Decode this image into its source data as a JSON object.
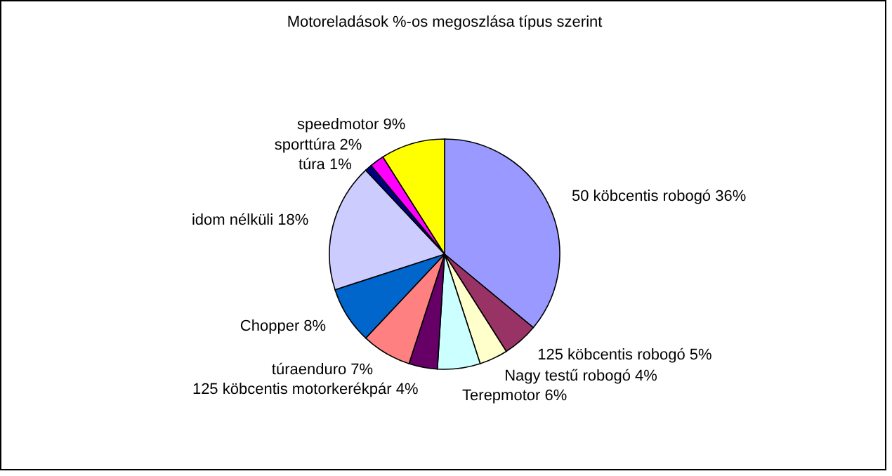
{
  "chart_data": {
    "type": "pie",
    "title": "Motoreladások %-os megoszlása típus szerint",
    "categories": [
      "50 köbcentis robogó",
      "125 köbcentis robogó",
      "Nagy testű robogó",
      "Terepmotor",
      "125 köbcentis motorkerékpár",
      "túraenduro",
      "Chopper",
      "idom nélküli",
      "túra",
      "sporttúra",
      "speedmotor"
    ],
    "values": [
      36,
      5,
      4,
      6,
      4,
      7,
      8,
      18,
      1,
      2,
      9
    ],
    "value_labels": [
      "36%",
      "5%",
      "4%",
      "6%",
      "4%",
      "7%",
      "8%",
      "18%",
      "1%",
      "2%",
      "9%"
    ],
    "colors": [
      "#9999ff",
      "#993366",
      "#ffffcc",
      "#ccffff",
      "#660066",
      "#ff8080",
      "#0066cc",
      "#ccccff",
      "#000080",
      "#ff00ff",
      "#ffff00"
    ]
  }
}
